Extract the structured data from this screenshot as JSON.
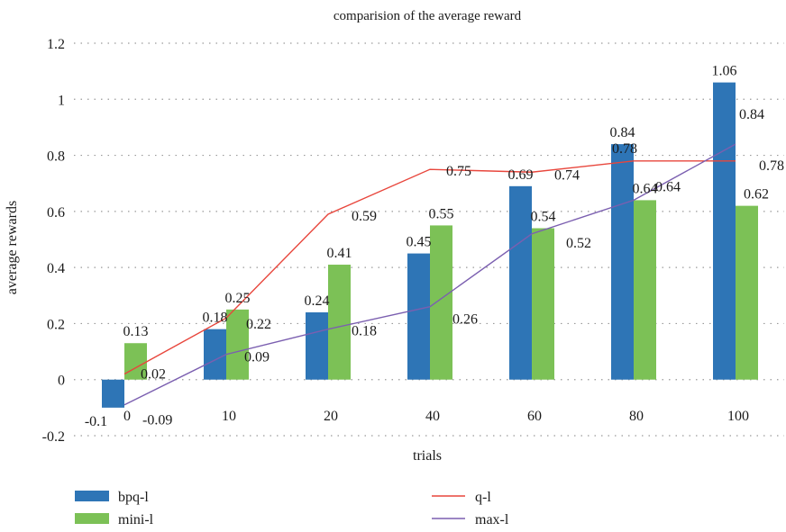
{
  "chart_data": {
    "type": "bar",
    "title": "comparision of the average reward",
    "xlabel": "trials",
    "ylabel": "average rewards",
    "categories": [
      "0",
      "10",
      "20",
      "40",
      "60",
      "80",
      "100"
    ],
    "ylim": [
      -0.2,
      1.2
    ],
    "yticks": [
      "-0.2",
      "0",
      "0.2",
      "0.4",
      "0.6",
      "0.8",
      "1",
      "1.2"
    ],
    "grid": true,
    "legend_position": "bottom",
    "series": [
      {
        "name": "bpq-l",
        "kind": "bar",
        "color": "#2e75b6",
        "values": [
          -0.1,
          0.18,
          0.24,
          0.45,
          0.69,
          0.84,
          1.06
        ],
        "labels": [
          "-0.1",
          "0.18",
          "0.24",
          "0.45",
          "0.69",
          "0.84",
          "1.06"
        ]
      },
      {
        "name": "mini-l",
        "kind": "bar",
        "color": "#7cc156",
        "values": [
          0.13,
          0.25,
          0.41,
          0.55,
          0.54,
          0.64,
          0.62
        ],
        "labels": [
          "0.13",
          "0.25",
          "0.41",
          "0.55",
          "0.54",
          "0.64",
          "0.62"
        ]
      },
      {
        "name": "q-l",
        "kind": "line",
        "color": "#e8463c",
        "values": [
          0.02,
          0.22,
          0.59,
          0.75,
          0.74,
          0.78,
          0.78
        ],
        "labels": [
          "0.02",
          "0.22",
          "0.59",
          "0.75",
          "0.74",
          "0.78",
          "0.78"
        ]
      },
      {
        "name": "max-l",
        "kind": "line",
        "color": "#7b5fb0",
        "values": [
          -0.09,
          0.09,
          0.18,
          0.26,
          0.52,
          0.64,
          0.84
        ],
        "labels": [
          "-0.09",
          "0.09",
          "0.18",
          "0.26",
          "0.52",
          "0.64",
          "0.84"
        ]
      }
    ]
  }
}
